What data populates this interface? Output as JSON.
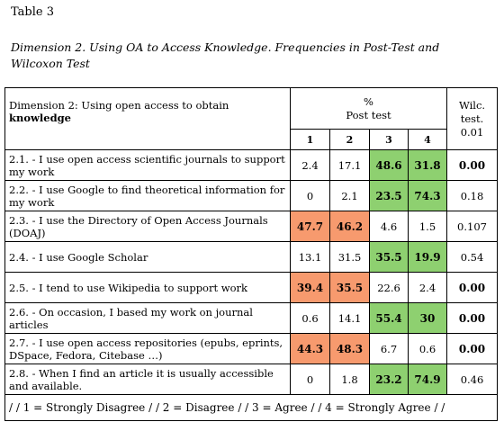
{
  "table_label": "Table 3",
  "caption": "Dimension 2. Using OA to Access Knowledge. Frequencies in Post-Test and Wilcoxon Test",
  "header": {
    "dimension_line1": "Dimension 2: Using open access to obtain",
    "dimension_line2": "knowledge",
    "percent": "%",
    "post_test": "Post test",
    "cols": [
      "1",
      "2",
      "3",
      "4"
    ],
    "wilc_line1": "Wilc.",
    "wilc_line2": "test.",
    "wilc_line3": "0.01"
  },
  "colors": {
    "agree_highlight": "#8ed070",
    "disagree_highlight": "#f79a6e"
  },
  "rows": [
    {
      "item": "2.1. - I use open access scientific journals to support my work",
      "v1": "2.4",
      "v2": "17.1",
      "v3": "48.6",
      "v4": "31.8",
      "wilc": "0.00"
    },
    {
      "item": "2.2. - I use Google to find theoretical information for my work",
      "v1": "0",
      "v2": "2.1",
      "v3": "23.5",
      "v4": "74.3",
      "wilc": "0.18"
    },
    {
      "item": "2.3. - I use the Directory of Open Access Journals (DOAJ)",
      "v1": "47.7",
      "v2": "46.2",
      "v3": "4.6",
      "v4": "1.5",
      "wilc": "0.107"
    },
    {
      "item": "2.4. - I use Google Scholar",
      "v1": "13.1",
      "v2": "31.5",
      "v3": "35.5",
      "v4": "19.9",
      "wilc": "0.54"
    },
    {
      "item": "2.5. - I tend to use Wikipedia to support work",
      "v1": "39.4",
      "v2": "35.5",
      "v3": "22.6",
      "v4": "2.4",
      "wilc": "0.00"
    },
    {
      "item": "2.6. - On occasion, I based my work on journal articles",
      "v1": "0.6",
      "v2": "14.1",
      "v3": "55.4",
      "v4": "30",
      "wilc": "0.00"
    },
    {
      "item": "2.7. - I use open access repositories (epubs, eprints, DSpace, Fedora, Citebase …)",
      "v1": "44.3",
      "v2": "48.3",
      "v3": "6.7",
      "v4": "0.6",
      "wilc": "0.00"
    },
    {
      "item": "2.8. - When I find an article it is usually accessible and available.",
      "v1": "0",
      "v2": "1.8",
      "v3": "23.2",
      "v4": "74.9",
      "wilc": "0.46"
    }
  ],
  "legend": "/ / 1 = Strongly Disagree / / 2 = Disagree / / 3 = Agree / / 4 = Strongly Agree / /"
}
